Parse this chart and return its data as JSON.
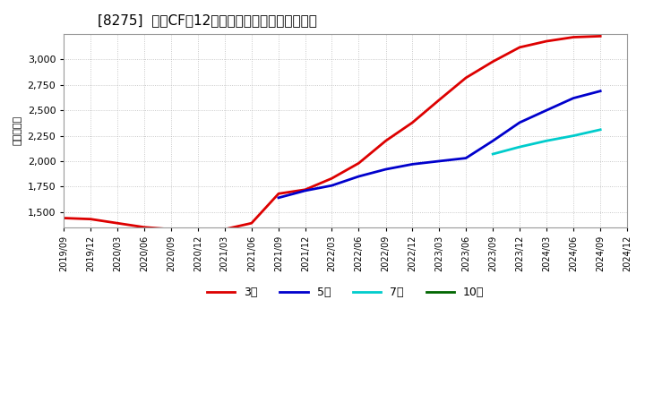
{
  "title": "[8275]  営業CFの12か月移動合計の平均値の推移",
  "ylabel": "（百万円）",
  "background_color": "#ffffff",
  "plot_bg_color": "#ffffff",
  "grid_color": "#aaaaaa",
  "ylim": [
    1350,
    3250
  ],
  "yticks": [
    1500,
    1750,
    2000,
    2250,
    2500,
    2750,
    3000
  ],
  "series": {
    "3year": {
      "label": "3年",
      "color": "#dd0000",
      "dates": [
        "2019-09",
        "2019-12",
        "2020-03",
        "2020-06",
        "2020-09",
        "2020-12",
        "2021-03",
        "2021-06",
        "2021-09",
        "2021-12",
        "2022-03",
        "2022-06",
        "2022-09",
        "2022-12",
        "2023-03",
        "2023-06",
        "2023-09",
        "2023-12",
        "2024-03",
        "2024-06",
        "2024-09"
      ],
      "values": [
        1440,
        1430,
        1390,
        1350,
        1330,
        1320,
        1330,
        1390,
        1680,
        1720,
        1830,
        1980,
        2200,
        2380,
        2600,
        2820,
        2980,
        3120,
        3180,
        3220,
        3230
      ]
    },
    "5year": {
      "label": "5年",
      "color": "#0000cc",
      "dates": [
        "2021-09",
        "2021-12",
        "2022-03",
        "2022-06",
        "2022-09",
        "2022-12",
        "2023-03",
        "2023-06",
        "2023-09",
        "2023-12",
        "2024-03",
        "2024-06",
        "2024-09"
      ],
      "values": [
        1640,
        1710,
        1760,
        1850,
        1920,
        1970,
        2000,
        2030,
        2200,
        2380,
        2500,
        2620,
        2690
      ]
    },
    "7year": {
      "label": "7年",
      "color": "#00cccc",
      "dates": [
        "2023-09",
        "2023-12",
        "2024-03",
        "2024-06",
        "2024-09"
      ],
      "values": [
        2070,
        2140,
        2200,
        2250,
        2310
      ]
    },
    "10year": {
      "label": "10年",
      "color": "#006600",
      "dates": [],
      "values": []
    }
  },
  "xtick_labels": [
    "2019/09",
    "2019/12",
    "2020/03",
    "2020/06",
    "2020/09",
    "2020/12",
    "2021/03",
    "2021/06",
    "2021/09",
    "2021/12",
    "2022/03",
    "2022/06",
    "2022/09",
    "2022/12",
    "2023/03",
    "2023/06",
    "2023/09",
    "2023/12",
    "2024/03",
    "2024/06",
    "2024/09",
    "2024/12"
  ]
}
